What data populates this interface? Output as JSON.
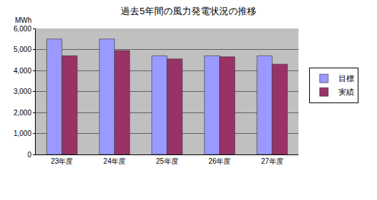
{
  "chart_data": {
    "type": "bar",
    "title": "過去5年間の風力発電状況の推移",
    "y_label": "MWh",
    "categories": [
      "23年度",
      "24年度",
      "25年度",
      "26年度",
      "27年度"
    ],
    "series": [
      {
        "name": "目標",
        "color": "#9999FF",
        "values": [
          5500,
          5500,
          4700,
          4700,
          4700
        ]
      },
      {
        "name": "実績",
        "color": "#993366",
        "values": [
          4700,
          4950,
          4550,
          4650,
          4300
        ]
      }
    ],
    "ylim": [
      0,
      6000
    ],
    "yticks": [
      0,
      {
        "value": 1000,
        "label": "1,000"
      },
      {
        "value": 2000,
        "label": "2,000"
      },
      {
        "value": 3000,
        "label": "3,000"
      },
      {
        "value": 4000,
        "label": "4,000"
      },
      {
        "value": 5000,
        "label": "5,000"
      },
      {
        "value": 6000,
        "label": "6,000"
      }
    ],
    "grid": true,
    "legend": "right"
  }
}
